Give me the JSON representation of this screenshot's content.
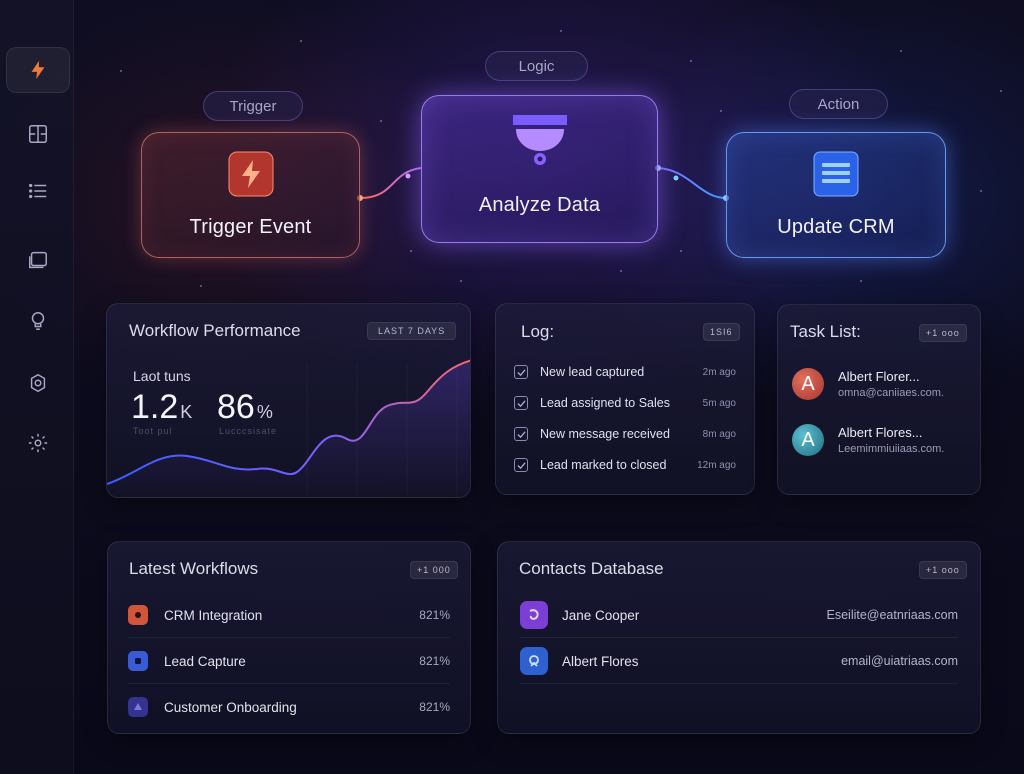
{
  "sidebar": {
    "items": [
      {
        "icon": "lightning-icon",
        "active": true
      },
      {
        "icon": "layout-icon"
      },
      {
        "icon": "list-icon"
      },
      {
        "icon": "folders-icon"
      },
      {
        "icon": "bulb-icon"
      },
      {
        "icon": "cog-icon"
      },
      {
        "icon": "settings-icon"
      }
    ]
  },
  "flow": {
    "trigger": {
      "tag": "Trigger",
      "label": "Trigger Event",
      "color": "#e0655a"
    },
    "logic": {
      "tag": "Logic",
      "label": "Analyze Data",
      "color": "#8a63ff"
    },
    "action": {
      "tag": "Action",
      "label": "Update CRM",
      "color": "#3f7cff"
    }
  },
  "performance": {
    "title": "Workflow Performance",
    "badge": "LAST 7 DAYS",
    "subtitle": "Laot tuns",
    "runs_value": "1.2",
    "runs_unit": "K",
    "rate_value": "86",
    "rate_unit": "%",
    "runs_caption": "Toot pul",
    "rate_caption": "Lucccsisate"
  },
  "log": {
    "title": "Log:",
    "badge": "1SI6",
    "entries": [
      {
        "text": "New lead captured",
        "time": "2m ago"
      },
      {
        "text": "Lead assigned to Sales",
        "time": "5m ago"
      },
      {
        "text": "New message received",
        "time": "8m ago"
      },
      {
        "text": "Lead marked to closed",
        "time": "12m ago"
      }
    ]
  },
  "tasks": {
    "title": "Task List:",
    "badge": "+1 ooo",
    "items": [
      {
        "initial": "A",
        "name": "Albert Florer...",
        "email": "omna@caniiaes.com.",
        "color": "#c4473f"
      },
      {
        "initial": "A",
        "name": "Albert Flores...",
        "email": "Leemimmiuiiaas.com.",
        "color": "#2f8da0"
      }
    ]
  },
  "workflows": {
    "title": "Latest Workflows",
    "badge": "+1 000",
    "items": [
      {
        "name": "CRM Integration",
        "value": "821%",
        "color": "#d0553a"
      },
      {
        "name": "Lead Capture",
        "value": "821%",
        "color": "#3a5ad6"
      },
      {
        "name": "Customer Onboarding",
        "value": "821%",
        "color": "#3a3aa0"
      }
    ]
  },
  "contacts": {
    "title": "Contacts Database",
    "badge": "+1 ooo",
    "items": [
      {
        "name": "Jane Cooper",
        "email": "Eseilite@eatnriaas.com",
        "color": "#7c3fd6"
      },
      {
        "name": "Albert Flores",
        "email": "email@uiatriaas.com",
        "color": "#2f60d0"
      }
    ]
  }
}
